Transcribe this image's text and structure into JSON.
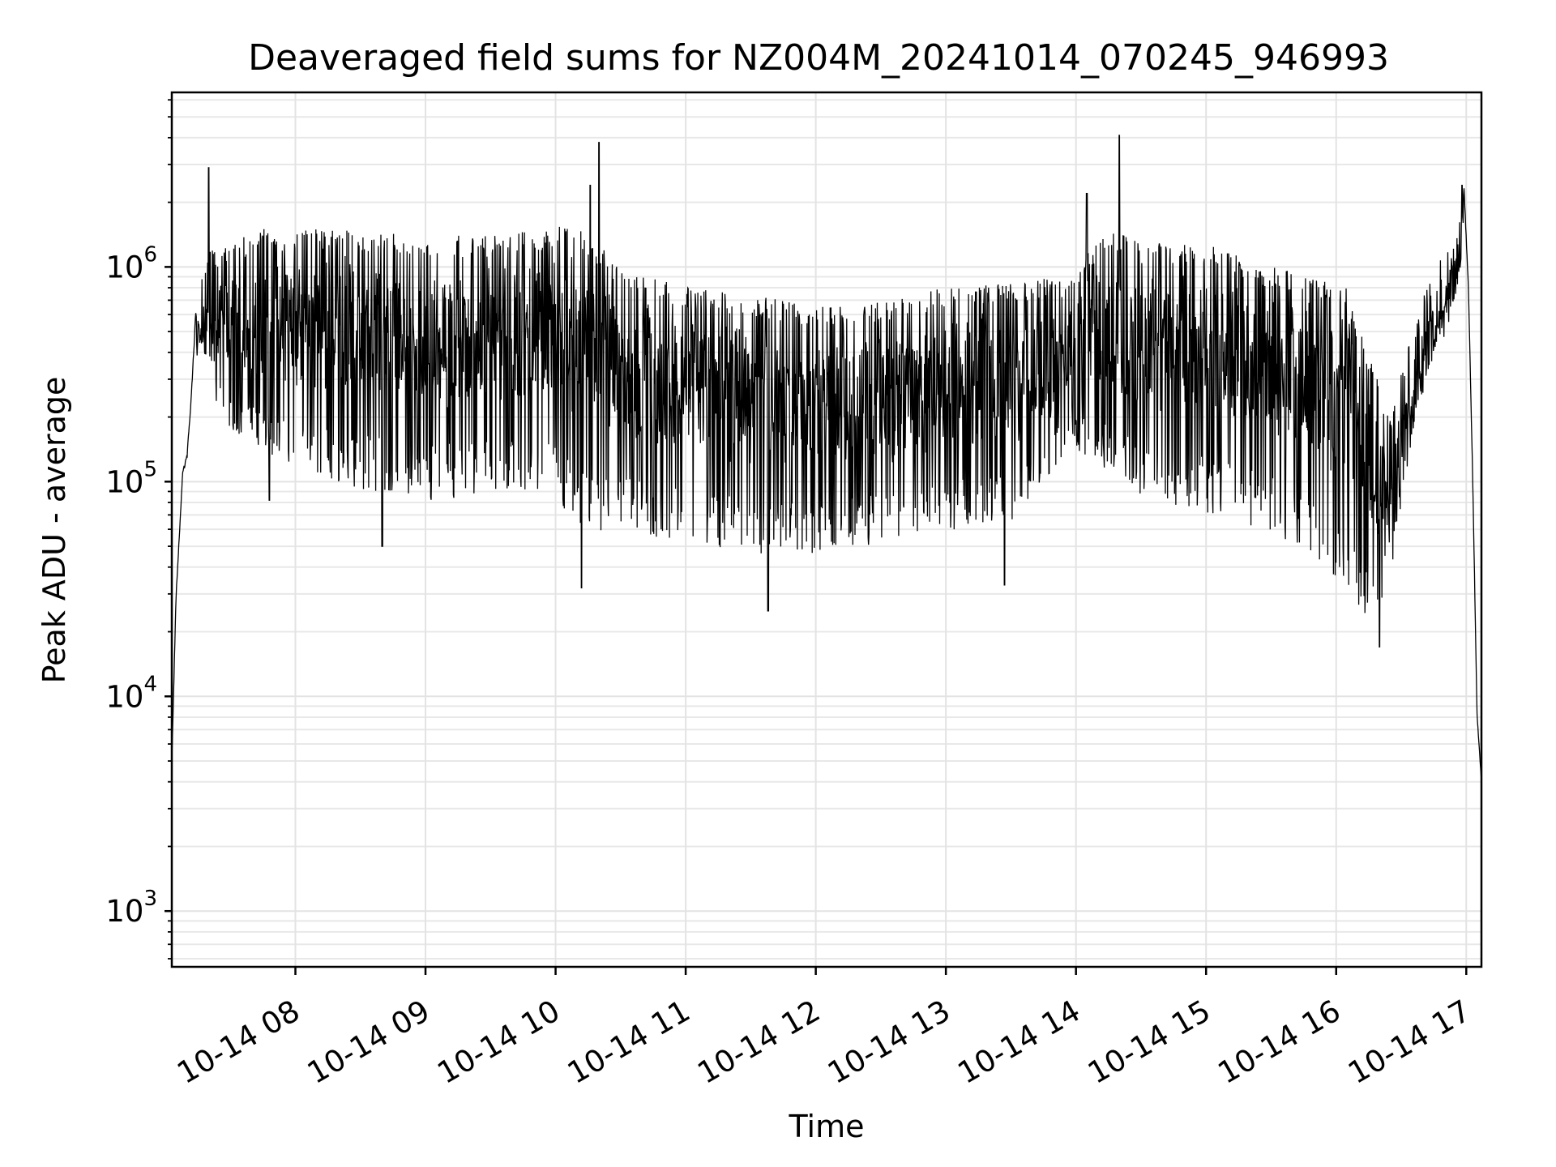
{
  "chart_data": {
    "type": "line",
    "title": "Deaveraged field sums for NZ004M_20241014_070245_946993",
    "xlabel": "Time",
    "ylabel": "Peak ADU - average",
    "yscale": "log",
    "xlim": [
      "2024-10-14 07:03",
      "2024-10-14 17:07"
    ],
    "ylim": [
      550,
      6500000
    ],
    "x_ticks": [
      "10-14 08",
      "10-14 09",
      "10-14 10",
      "10-14 11",
      "10-14 12",
      "10-14 13",
      "10-14 14",
      "10-14 15",
      "10-14 16",
      "10-14 17"
    ],
    "x_tick_times": [
      "2024-10-14 08:00",
      "2024-10-14 09:00",
      "2024-10-14 10:00",
      "2024-10-14 11:00",
      "2024-10-14 12:00",
      "2024-10-14 13:00",
      "2024-10-14 14:00",
      "2024-10-14 15:00",
      "2024-10-14 16:00",
      "2024-10-14 17:00"
    ],
    "y_ticks": [
      1000,
      10000,
      100000,
      1000000
    ],
    "grid": true,
    "line_color": "#000000",
    "envelope": {
      "description": "",
      "x": [
        "2024-10-14 07:03",
        "2024-10-14 07:05",
        "2024-10-14 07:07",
        "2024-10-14 07:08",
        "2024-10-14 07:10",
        "2024-10-14 07:12",
        "2024-10-14 07:14",
        "2024-10-14 07:17",
        "2024-10-14 07:20",
        "2024-10-14 07:30",
        "2024-10-14 07:45",
        "2024-10-14 08:00",
        "2024-10-14 08:30",
        "2024-10-14 09:00",
        "2024-10-14 09:30",
        "2024-10-14 09:55",
        "2024-10-14 10:10",
        "2024-10-14 10:30",
        "2024-10-14 11:00",
        "2024-10-14 11:30",
        "2024-10-14 12:00",
        "2024-10-14 12:30",
        "2024-10-14 13:00",
        "2024-10-14 13:30",
        "2024-10-14 13:55",
        "2024-10-14 14:15",
        "2024-10-14 14:30",
        "2024-10-14 15:00",
        "2024-10-14 15:30",
        "2024-10-14 15:50",
        "2024-10-14 16:05",
        "2024-10-14 16:15",
        "2024-10-14 16:25",
        "2024-10-14 16:35",
        "2024-10-14 16:45",
        "2024-10-14 16:55",
        "2024-10-14 16:59",
        "2024-10-14 17:01",
        "2024-10-14 17:03",
        "2024-10-14 17:05",
        "2024-10-14 17:07"
      ],
      "upper": [
        5000,
        30000,
        70000,
        110000,
        130000,
        250000,
        600000,
        1000000,
        1200000,
        1300000,
        1500000,
        1500000,
        1500000,
        1400000,
        1400000,
        1500000,
        1600000,
        1000000,
        800000,
        750000,
        650000,
        700000,
        800000,
        850000,
        900000,
        1500000,
        1300000,
        1300000,
        1000000,
        900000,
        800000,
        400000,
        200000,
        500000,
        1000000,
        1300000,
        2300000,
        800000,
        100000,
        8000,
        4000
      ],
      "lower": [
        5000,
        30000,
        70000,
        110000,
        130000,
        250000,
        600000,
        400000,
        250000,
        150000,
        120000,
        100000,
        80000,
        70000,
        75000,
        80000,
        50000,
        50000,
        45000,
        40000,
        40000,
        45000,
        50000,
        55000,
        120000,
        100000,
        70000,
        60000,
        50000,
        35000,
        25000,
        20000,
        30000,
        150000,
        400000,
        700000,
        2300000,
        800000,
        100000,
        8000,
        4000
      ]
    },
    "peaks": [
      {
        "x": "2024-10-14 07:20",
        "y": 2900000
      },
      {
        "x": "2024-10-14 10:16",
        "y": 2400000
      },
      {
        "x": "2024-10-14 10:20",
        "y": 3800000
      },
      {
        "x": "2024-10-14 14:05",
        "y": 2200000
      },
      {
        "x": "2024-10-14 14:20",
        "y": 4100000
      },
      {
        "x": "2024-10-14 16:58",
        "y": 2400000
      }
    ],
    "troughs": [
      {
        "x": "2024-10-14 07:48",
        "y": 82000
      },
      {
        "x": "2024-10-14 08:40",
        "y": 50000
      },
      {
        "x": "2024-10-14 10:12",
        "y": 32000
      },
      {
        "x": "2024-10-14 11:38",
        "y": 25000
      },
      {
        "x": "2024-10-14 13:27",
        "y": 33000
      },
      {
        "x": "2024-10-14 16:20",
        "y": 17000
      }
    ]
  }
}
